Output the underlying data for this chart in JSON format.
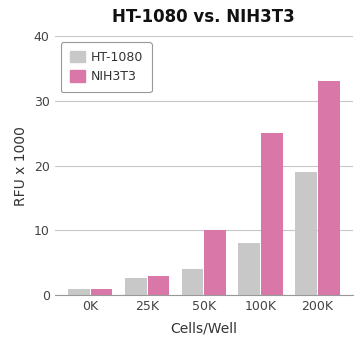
{
  "title": "HT-1080 vs. NIH3T3",
  "categories": [
    "0K",
    "25K",
    "50K",
    "100K",
    "200K"
  ],
  "ht1080_values": [
    1.0,
    2.7,
    4.0,
    8.0,
    19.0
  ],
  "nih3t3_values": [
    1.0,
    3.0,
    10.0,
    25.0,
    33.0
  ],
  "ht1080_color": "#c8c8c8",
  "nih3t3_color": "#d978a8",
  "ylabel": "RFU x 1000",
  "xlabel": "Cells/Well",
  "ylim": [
    0,
    40
  ],
  "yticks": [
    0,
    10,
    20,
    30,
    40
  ],
  "legend_labels": [
    "HT-1080",
    "NIH3T3"
  ],
  "bar_width": 0.38,
  "title_fontsize": 12,
  "axis_fontsize": 10,
  "tick_fontsize": 9,
  "legend_fontsize": 9,
  "background_color": "#ffffff",
  "grid_color": "#c8c8c8",
  "spine_color": "#999999"
}
